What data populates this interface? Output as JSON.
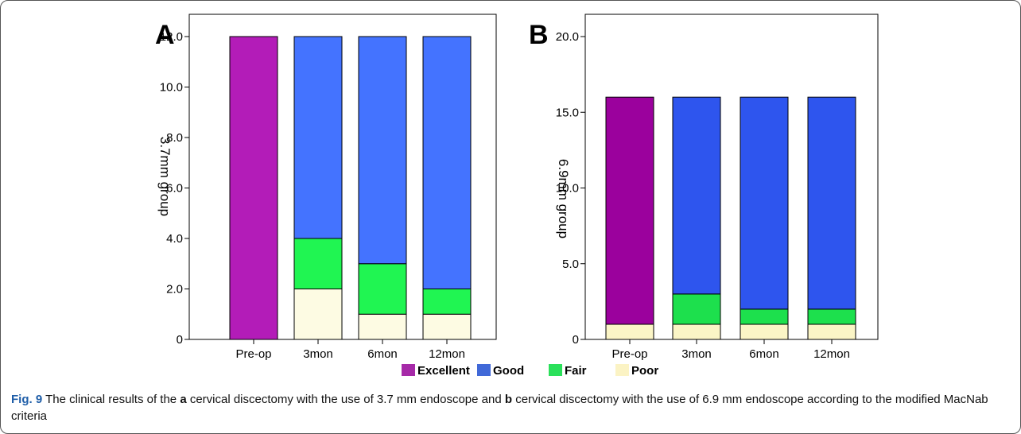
{
  "chart_data": [
    {
      "type": "bar",
      "panel_label": "A",
      "ylabel": "3.7mm group",
      "categories": [
        "Pre-op",
        "3mon",
        "6mon",
        "12mon"
      ],
      "ylim": [
        0,
        12
      ],
      "yticks": [
        "0",
        "2.0",
        "4.0",
        "6.0",
        "8.0",
        "10.0",
        "12.0"
      ],
      "stacked": true,
      "series": [
        {
          "name": "Poor",
          "values": [
            0,
            2,
            1,
            1
          ],
          "color": "#fdfbe3"
        },
        {
          "name": "Fair",
          "values": [
            0,
            2,
            2,
            1
          ],
          "color": "#20f552"
        },
        {
          "name": "Good",
          "values": [
            0,
            8,
            9,
            10
          ],
          "color": "#4473ff"
        },
        {
          "name": "Excellent",
          "values": [
            12,
            0,
            0,
            0
          ],
          "color": "#b31cb8"
        }
      ]
    },
    {
      "type": "bar",
      "panel_label": "B",
      "ylabel": "6.9mm group",
      "categories": [
        "Pre-op",
        "3mon",
        "6mon",
        "12mon"
      ],
      "ylim": [
        0,
        20
      ],
      "yticks": [
        "0",
        "5.0",
        "10.0",
        "15.0",
        "20.0"
      ],
      "stacked": true,
      "series": [
        {
          "name": "Poor",
          "values": [
            1,
            1,
            1,
            1
          ],
          "color": "#fbf5c6"
        },
        {
          "name": "Fair",
          "values": [
            0,
            2,
            1,
            1
          ],
          "color": "#1de04d"
        },
        {
          "name": "Good",
          "values": [
            0,
            13,
            14,
            14
          ],
          "color": "#2e55ee"
        },
        {
          "name": "Excellent",
          "values": [
            15,
            0,
            0,
            0
          ],
          "color": "#9b019d"
        }
      ]
    }
  ],
  "legend": {
    "items": [
      {
        "name": "Excellent",
        "color": "#a62aa8"
      },
      {
        "name": "Good",
        "color": "#4169d8"
      },
      {
        "name": "Fair",
        "color": "#2ae05a"
      },
      {
        "name": "Poor",
        "color": "#fbf3c4"
      }
    ]
  },
  "caption": {
    "label": "Fig. 9",
    "part1": " The clinical results of the ",
    "a": "a",
    "part2": " cervical discectomy with the use of 3.7 mm endoscope and ",
    "b": "b",
    "part3": " cervical discectomy with the use of 6.9 mm endoscope according to the modified MacNab criteria"
  }
}
